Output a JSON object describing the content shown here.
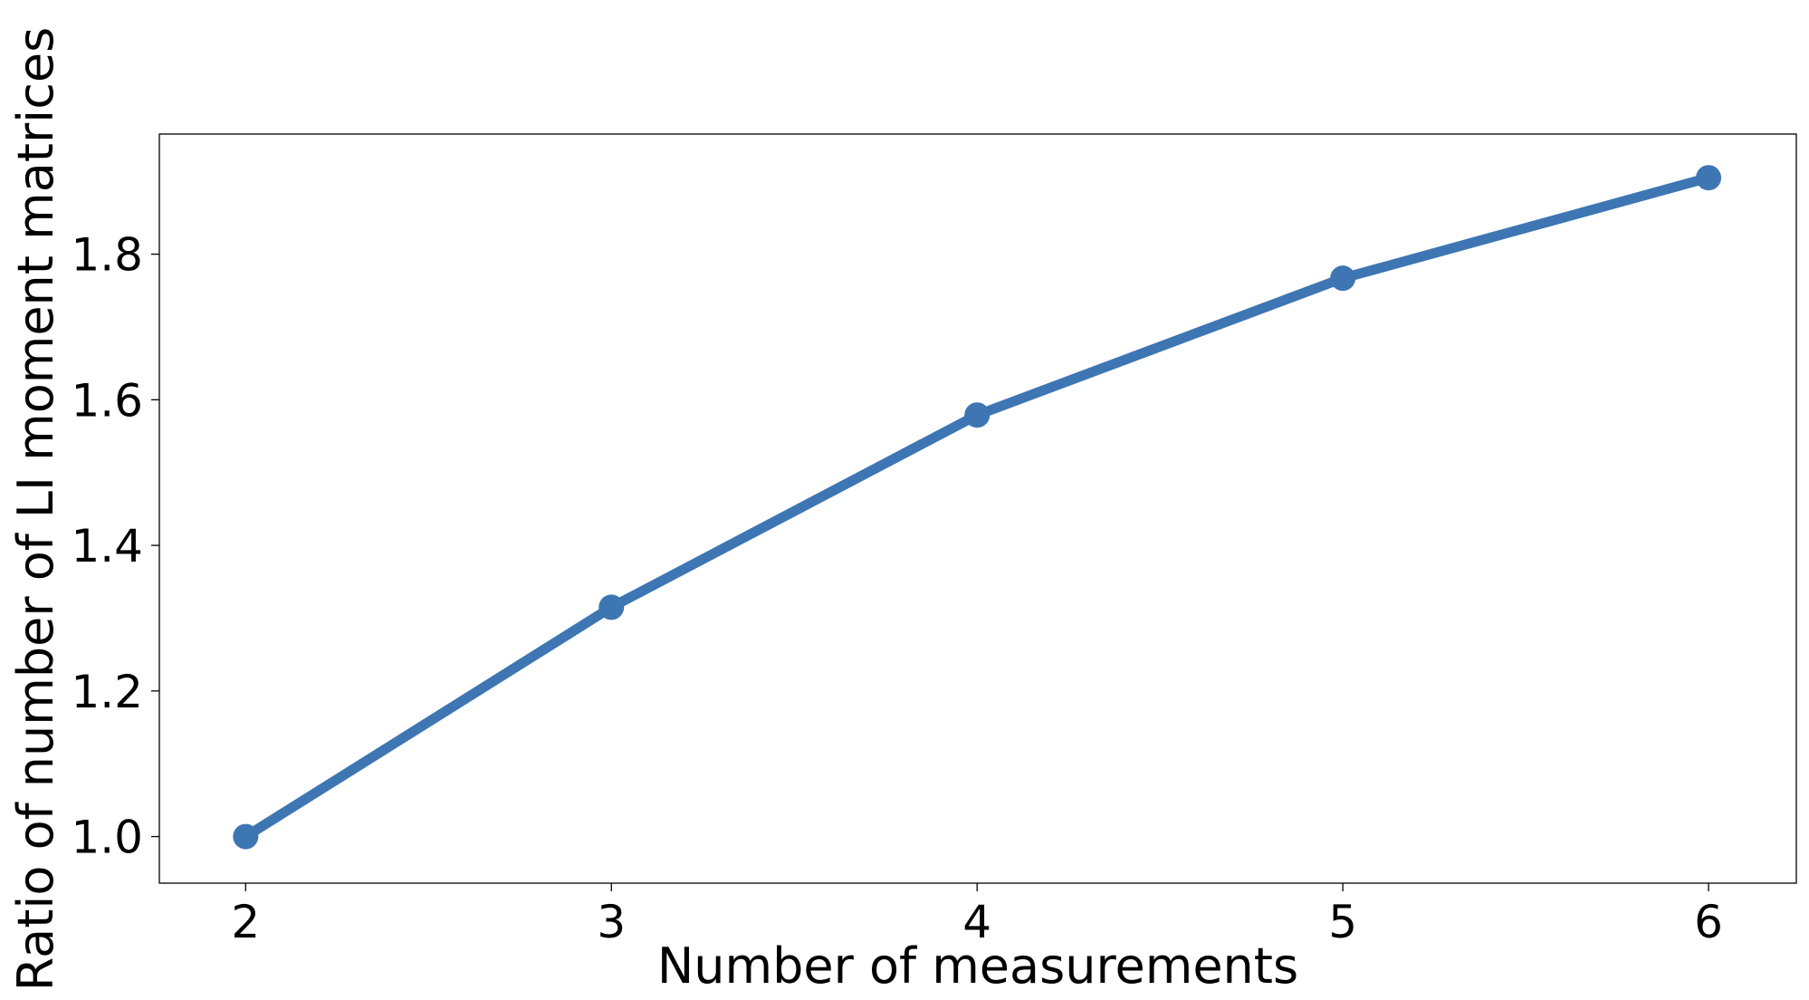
{
  "chart_data": {
    "type": "line",
    "xlabel": "Number of measurements",
    "ylabel": "Ratio of number of LI moment matrices",
    "x": [
      2,
      3,
      4,
      5,
      6
    ],
    "series": [
      {
        "color": "#3d76b3",
        "values": [
          1.0,
          1.315,
          1.579,
          1.767,
          1.905
        ]
      }
    ],
    "xlim": [
      1.764,
      6.24
    ],
    "ylim": [
      0.936,
      1.965
    ],
    "xticks": [
      2,
      3,
      4,
      5,
      6
    ],
    "yticks": [
      {
        "value": 1.0,
        "label": "1.0"
      },
      1.2,
      1.4,
      1.6,
      1.8
    ],
    "grid": false
  }
}
